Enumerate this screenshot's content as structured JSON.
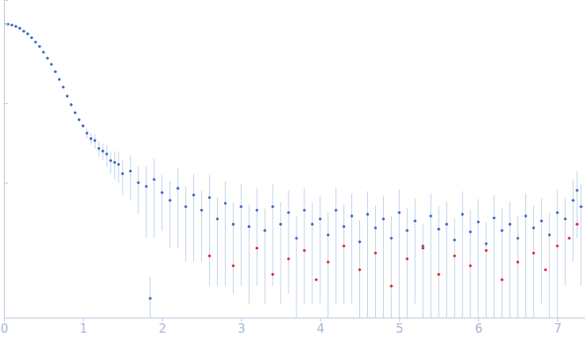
{
  "chart_data": {
    "type": "scatter",
    "log": "y",
    "grid": false,
    "tick_labels": "x",
    "xlim": [
      0,
      7.35
    ],
    "ylim": [
      0.02,
      200
    ],
    "xticks": [
      0,
      1,
      2,
      3,
      4,
      5,
      6,
      7
    ],
    "yticks": [
      1,
      10,
      100
    ],
    "series": [
      {
        "color": "#4169c9",
        "marker": "circle",
        "x": [
          0,
          0.05,
          0.1,
          0.15,
          0.2,
          0.25,
          0.3,
          0.35,
          0.4,
          0.45,
          0.5,
          0.55,
          0.6,
          0.65,
          0.7,
          0.75,
          0.8,
          0.85,
          0.9,
          0.95,
          1.0,
          1.05,
          1.1,
          1.15,
          1.2,
          1.25,
          1.3,
          1.35,
          1.4,
          1.45,
          1.5,
          1.6,
          1.7,
          1.8,
          1.85,
          1.9,
          2.0,
          2.1,
          2.2,
          2.3,
          2.4,
          2.5,
          2.6,
          2.7,
          2.8,
          2.9,
          3.0,
          3.1,
          3.2,
          3.3,
          3.4,
          3.5,
          3.6,
          3.7,
          3.8,
          3.9,
          4.0,
          4.1,
          4.2,
          4.3,
          4.4,
          4.5,
          4.6,
          4.7,
          4.8,
          4.9,
          5.0,
          5.1,
          5.2,
          5.3,
          5.4,
          5.5,
          5.6,
          5.7,
          5.8,
          5.9,
          6.0,
          6.1,
          6.2,
          6.3,
          6.4,
          6.5,
          6.6,
          6.7,
          6.8,
          6.9,
          7.0,
          7.1,
          7.2,
          7.25,
          7.3
        ],
        "values": [
          100,
          99,
          97,
          93,
          88,
          81,
          75,
          67,
          59,
          52,
          44,
          37,
          31,
          25,
          20,
          16,
          12.3,
          9.6,
          7.6,
          6.2,
          5.2,
          4.2,
          3.6,
          3.4,
          2.7,
          2.5,
          2.3,
          1.9,
          1.8,
          1.7,
          1.3,
          1.4,
          1.0,
          0.9,
          0.035,
          1.1,
          0.75,
          0.6,
          0.85,
          0.5,
          0.7,
          0.45,
          0.65,
          0.35,
          0.55,
          0.3,
          0.5,
          0.28,
          0.45,
          0.25,
          0.5,
          0.3,
          0.42,
          0.2,
          0.45,
          0.3,
          0.35,
          0.22,
          0.45,
          0.28,
          0.38,
          0.18,
          0.4,
          0.27,
          0.35,
          0.2,
          0.42,
          0.25,
          0.33,
          0.16,
          0.38,
          0.26,
          0.3,
          0.19,
          0.4,
          0.24,
          0.32,
          0.17,
          0.36,
          0.25,
          0.3,
          0.2,
          0.38,
          0.27,
          0.33,
          0.22,
          0.42,
          0.35,
          0.6,
          0.8,
          0.5
        ],
        "errors": [
          1.5,
          1.2,
          1.0,
          0.9,
          0.8,
          0.7,
          0.6,
          0.5,
          0.45,
          0.4,
          0.35,
          0.3,
          0.3,
          0.25,
          0.25,
          0.2,
          0.2,
          0.2,
          0.2,
          0.2,
          0.3,
          0.6,
          0.6,
          0.7,
          0.6,
          0.6,
          0.7,
          0.6,
          0.7,
          0.7,
          0.6,
          0.8,
          0.6,
          0.7,
          0.03,
          0.9,
          0.5,
          0.45,
          0.7,
          0.4,
          0.6,
          0.35,
          0.6,
          0.3,
          0.5,
          0.26,
          0.45,
          0.25,
          0.4,
          0.22,
          0.45,
          0.27,
          0.38,
          0.18,
          0.42,
          0.27,
          0.32,
          0.2,
          0.42,
          0.25,
          0.35,
          0.16,
          0.38,
          0.25,
          0.33,
          0.18,
          0.4,
          0.23,
          0.3,
          0.14,
          0.36,
          0.24,
          0.28,
          0.17,
          0.38,
          0.22,
          0.3,
          0.15,
          0.34,
          0.23,
          0.28,
          0.18,
          0.36,
          0.25,
          0.3,
          0.2,
          0.4,
          0.3,
          0.5,
          0.6,
          0.45
        ]
      },
      {
        "color": "#e0282c",
        "marker": "circle",
        "x": [
          2.6,
          2.9,
          3.2,
          3.4,
          3.6,
          3.8,
          3.95,
          4.1,
          4.3,
          4.5,
          4.7,
          4.9,
          5.1,
          5.3,
          5.5,
          5.7,
          5.9,
          6.1,
          6.3,
          6.5,
          6.7,
          6.85,
          7.0,
          7.15,
          7.25
        ],
        "values": [
          0.12,
          0.09,
          0.15,
          0.07,
          0.11,
          0.14,
          0.06,
          0.1,
          0.16,
          0.08,
          0.13,
          0.05,
          0.11,
          0.15,
          0.07,
          0.12,
          0.09,
          0.14,
          0.06,
          0.1,
          0.13,
          0.08,
          0.16,
          0.2,
          0.3
        ]
      }
    ]
  }
}
